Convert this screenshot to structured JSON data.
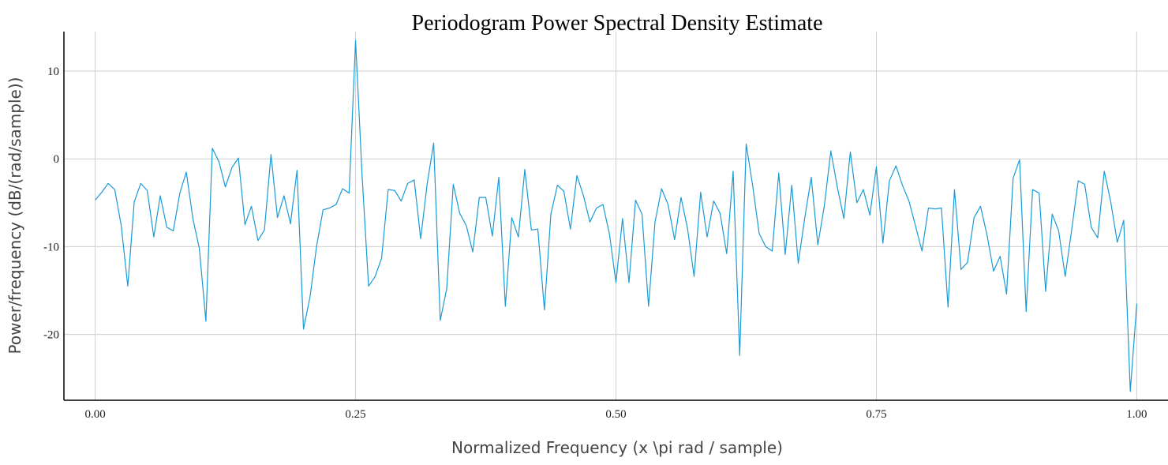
{
  "chart_data": {
    "type": "line",
    "title": "Periodogram Power Spectral Density Estimate",
    "xlabel": "Normalized Frequency (x \\pi rad / sample)",
    "ylabel": "Power/frequency (dB/(rad/sample))",
    "xlim": [
      -0.03,
      1.03
    ],
    "ylim": [
      -27.5,
      14.5
    ],
    "x_ticks": [
      0.0,
      0.25,
      0.5,
      0.75,
      1.0
    ],
    "x_tick_labels": [
      "0.00",
      "0.25",
      "0.50",
      "0.75",
      "1.00"
    ],
    "y_ticks": [
      -20,
      -10,
      0,
      10
    ],
    "y_tick_labels": [
      "-20",
      "-10",
      "0",
      "10"
    ],
    "grid": true,
    "legend": "none",
    "series": [
      {
        "color": "#1a9ad6",
        "x": [
          0.0,
          0.0063,
          0.0125,
          0.0188,
          0.025,
          0.0313,
          0.0375,
          0.0438,
          0.05,
          0.0563,
          0.0625,
          0.0688,
          0.075,
          0.0813,
          0.0875,
          0.0938,
          0.1,
          0.1063,
          0.1125,
          0.1188,
          0.125,
          0.1313,
          0.1375,
          0.1438,
          0.15,
          0.1563,
          0.1625,
          0.1688,
          0.175,
          0.1813,
          0.1875,
          0.1938,
          0.2,
          0.2063,
          0.2125,
          0.2188,
          0.225,
          0.2313,
          0.2375,
          0.2438,
          0.25,
          0.2563,
          0.2625,
          0.2688,
          0.275,
          0.2813,
          0.2875,
          0.2938,
          0.3,
          0.3063,
          0.3125,
          0.3188,
          0.325,
          0.3313,
          0.3375,
          0.3438,
          0.35,
          0.3563,
          0.3625,
          0.3688,
          0.375,
          0.3813,
          0.3875,
          0.3938,
          0.4,
          0.4063,
          0.4125,
          0.4188,
          0.425,
          0.4313,
          0.4375,
          0.4438,
          0.45,
          0.4563,
          0.4625,
          0.4688,
          0.475,
          0.4813,
          0.4875,
          0.4938,
          0.5,
          0.5063,
          0.5125,
          0.5188,
          0.525,
          0.5313,
          0.5375,
          0.5438,
          0.55,
          0.5563,
          0.5625,
          0.5688,
          0.575,
          0.5813,
          0.5875,
          0.5938,
          0.6,
          0.6063,
          0.6125,
          0.6188,
          0.625,
          0.6313,
          0.6375,
          0.6438,
          0.65,
          0.6563,
          0.6625,
          0.6688,
          0.675,
          0.6813,
          0.6875,
          0.6938,
          0.7,
          0.7063,
          0.7125,
          0.7188,
          0.725,
          0.7313,
          0.7375,
          0.7438,
          0.75,
          0.7563,
          0.7625,
          0.7688,
          0.775,
          0.7813,
          0.7875,
          0.7938,
          0.8,
          0.8063,
          0.8125,
          0.8188,
          0.825,
          0.8313,
          0.8375,
          0.8438,
          0.85,
          0.8563,
          0.8625,
          0.8688,
          0.875,
          0.8813,
          0.8875,
          0.8938,
          0.9,
          0.9063,
          0.9125,
          0.9188,
          0.925,
          0.9313,
          0.9375,
          0.9438,
          0.95,
          0.9563,
          0.9625,
          0.9688,
          0.975,
          0.9813,
          0.9875,
          0.9938,
          1.0
        ],
        "values": [
          -4.7,
          -3.8,
          -2.8,
          -3.5,
          -7.6,
          -14.5,
          -4.9,
          -2.8,
          -3.6,
          -8.9,
          -4.2,
          -7.8,
          -8.2,
          -3.9,
          -1.5,
          -6.8,
          -10.2,
          -18.5,
          1.2,
          -0.3,
          -3.2,
          -1.0,
          0.1,
          -7.5,
          -5.4,
          -9.3,
          -8.1,
          0.5,
          -6.7,
          -4.2,
          -7.4,
          -1.3,
          -19.4,
          -15.7,
          -10.0,
          -5.8,
          -5.6,
          -5.2,
          -3.4,
          -3.9,
          13.5,
          -2.0,
          -14.5,
          -13.4,
          -11.3,
          -3.5,
          -3.6,
          -4.8,
          -2.8,
          -2.4,
          -9.1,
          -2.8,
          1.8,
          -18.4,
          -14.8,
          -2.9,
          -6.2,
          -7.6,
          -10.6,
          -4.4,
          -4.4,
          -8.8,
          -2.1,
          -16.8,
          -6.7,
          -8.9,
          -1.2,
          -8.1,
          -8.0,
          -17.2,
          -6.3,
          -3.0,
          -3.7,
          -8.0,
          -1.9,
          -4.2,
          -7.2,
          -5.6,
          -5.2,
          -8.6,
          -14.1,
          -6.8,
          -14.1,
          -4.7,
          -6.3,
          -16.8,
          -7.2,
          -3.4,
          -5.2,
          -9.2,
          -4.4,
          -8.0,
          -13.4,
          -3.8,
          -8.9,
          -4.8,
          -6.2,
          -10.8,
          -1.4,
          -22.4,
          1.7,
          -3.1,
          -8.5,
          -10.0,
          -10.5,
          -1.6,
          -10.9,
          -3.0,
          -11.9,
          -6.7,
          -2.1,
          -9.8,
          -5.4,
          0.9,
          -3.2,
          -6.8,
          0.8,
          -5.0,
          -3.5,
          -6.4,
          -0.9,
          -9.6,
          -2.5,
          -0.8,
          -3.0,
          -4.8,
          -7.6,
          -10.5,
          -5.6,
          -5.7,
          -5.6,
          -16.9,
          -3.5,
          -12.6,
          -11.8,
          -6.7,
          -5.4,
          -8.7,
          -12.8,
          -11.1,
          -15.4,
          -2.2,
          -0.1,
          -17.4,
          -3.5,
          -3.9,
          -15.1,
          -6.3,
          -8.2,
          -13.4,
          -8.1,
          -2.5,
          -2.9,
          -7.8,
          -9.0,
          -1.4,
          -4.9,
          -9.5,
          -7.0,
          -26.5,
          -16.5
        ]
      }
    ]
  }
}
